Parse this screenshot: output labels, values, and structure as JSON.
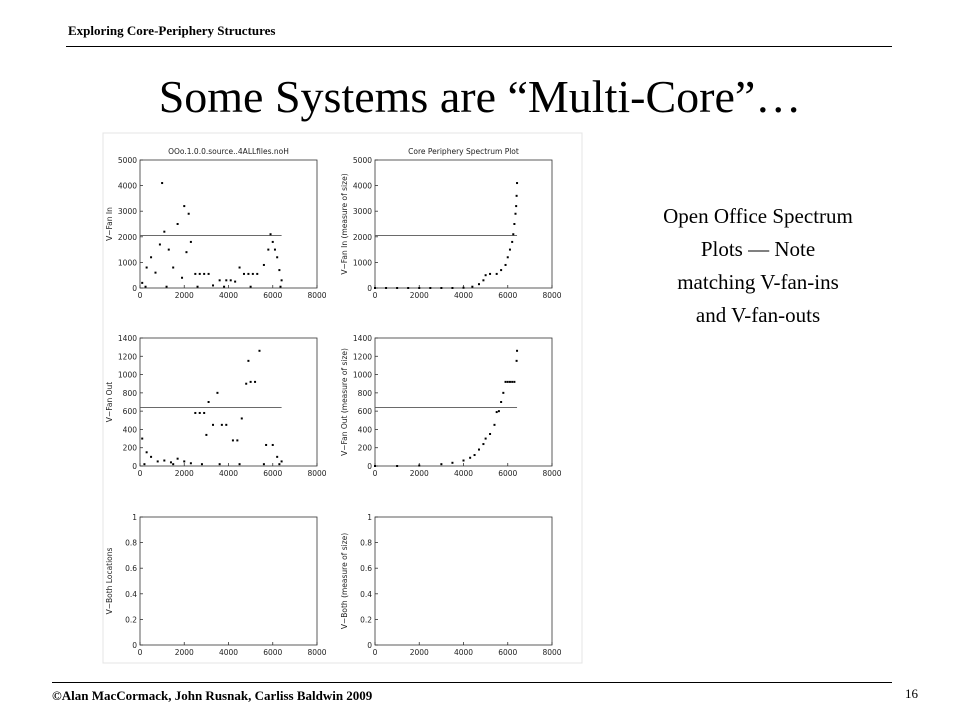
{
  "header": {
    "text": "Exploring Core-Periphery Structures"
  },
  "title": "Some Systems are “Multi-Core”…",
  "caption": "Open Office Spectrum Plots — Note matching V-fan-ins and V-fan-outs",
  "footer": {
    "copyright": "©Alan MacCormack, John Rusnak, Carliss Baldwin 2009",
    "page": "16"
  },
  "figure": {
    "plots": [
      {
        "title": "OOo.1.0.0.source..4ALLfiles.noH",
        "ylabel": "V−Fan In",
        "xlim": [
          0,
          8000
        ],
        "xticks": [
          0,
          2000,
          4000,
          6000,
          8000
        ],
        "ylim": [
          0,
          5000
        ],
        "yticks": [
          0,
          1000,
          2000,
          3000,
          4000,
          5000
        ],
        "threshold": 2050,
        "x": [
          100,
          300,
          500,
          700,
          900,
          1000,
          1100,
          1300,
          1500,
          1700,
          1900,
          2000,
          2100,
          2200,
          2300,
          2500,
          2700,
          2900,
          3100,
          3300,
          3600,
          3900,
          4100,
          4300,
          4500,
          4700,
          4900,
          5100,
          5300,
          5600,
          5800,
          5900,
          6000,
          6100,
          6200,
          6300,
          6400,
          250,
          1200,
          2600,
          3800,
          5000,
          6350
        ],
        "y": [
          200,
          800,
          1200,
          600,
          1700,
          4100,
          2200,
          1500,
          800,
          2500,
          400,
          3200,
          1400,
          2900,
          1800,
          550,
          550,
          550,
          550,
          100,
          300,
          300,
          300,
          250,
          800,
          550,
          550,
          550,
          550,
          900,
          1500,
          2100,
          1800,
          1500,
          1200,
          700,
          300,
          50,
          50,
          50,
          50,
          50,
          50
        ]
      },
      {
        "title": "Core Periphery Spectrum Plot",
        "ylabel": "V−Fan In (measure of size)",
        "xlim": [
          0,
          8000
        ],
        "xticks": [
          0,
          2000,
          4000,
          6000,
          8000
        ],
        "ylim": [
          0,
          5000
        ],
        "yticks": [
          0,
          1000,
          2000,
          3000,
          4000,
          5000
        ],
        "threshold": 2050,
        "x": [
          0,
          500,
          1000,
          1500,
          2000,
          2500,
          3000,
          3500,
          4000,
          4400,
          4700,
          4900,
          5000,
          5200,
          5500,
          5700,
          5900,
          6000,
          6100,
          6200,
          6250,
          6300,
          6350,
          6380,
          6400,
          6420
        ],
        "y": [
          0,
          0,
          0,
          0,
          0,
          0,
          0,
          0,
          10,
          50,
          150,
          300,
          500,
          550,
          550,
          700,
          900,
          1200,
          1500,
          1800,
          2100,
          2500,
          2900,
          3200,
          3600,
          4100
        ]
      },
      {
        "ylabel": "V−Fan Out",
        "xlim": [
          0,
          8000
        ],
        "xticks": [
          0,
          2000,
          4000,
          6000,
          8000
        ],
        "ylim": [
          0,
          1400
        ],
        "yticks": [
          0,
          200,
          400,
          600,
          800,
          1000,
          1200,
          1400
        ],
        "threshold": 640,
        "x": [
          100,
          300,
          500,
          800,
          1100,
          1400,
          1700,
          2000,
          2300,
          2500,
          2700,
          2900,
          3000,
          3100,
          3300,
          3500,
          3700,
          3900,
          4200,
          4400,
          4600,
          4800,
          5000,
          5200,
          5400,
          5700,
          6000,
          6200,
          6400,
          200,
          1500,
          2800,
          3600,
          4500,
          5600,
          6300,
          4900
        ],
        "y": [
          300,
          150,
          100,
          50,
          60,
          40,
          80,
          50,
          30,
          580,
          580,
          580,
          340,
          700,
          450,
          800,
          450,
          450,
          280,
          280,
          520,
          900,
          920,
          920,
          1260,
          230,
          230,
          100,
          50,
          20,
          20,
          20,
          20,
          20,
          20,
          20,
          1150
        ]
      },
      {
        "ylabel": "V−Fan Out (measure of size)",
        "xlim": [
          0,
          8000
        ],
        "xticks": [
          0,
          2000,
          4000,
          6000,
          8000
        ],
        "ylim": [
          0,
          1400
        ],
        "yticks": [
          0,
          200,
          400,
          600,
          800,
          1000,
          1200,
          1400
        ],
        "threshold": 640,
        "x": [
          0,
          1000,
          2000,
          3000,
          3500,
          4000,
          4300,
          4500,
          4700,
          4900,
          5000,
          5200,
          5400,
          5500,
          5600,
          5700,
          5800,
          5900,
          6000,
          6100,
          6200,
          6300,
          6400,
          6420
        ],
        "y": [
          0,
          0,
          5,
          20,
          35,
          60,
          90,
          120,
          180,
          240,
          300,
          350,
          450,
          590,
          600,
          700,
          800,
          920,
          920,
          920,
          920,
          920,
          1150,
          1260
        ]
      },
      {
        "ylabel": "V−Both Locations",
        "xlim": [
          0,
          8000
        ],
        "xticks": [
          0,
          2000,
          4000,
          6000,
          8000
        ],
        "ylim": [
          0,
          1
        ],
        "yticks": [
          0,
          0.2,
          0.4,
          0.6,
          0.8,
          1
        ],
        "x": [],
        "y": []
      },
      {
        "ylabel": "V−Both (measure of size)",
        "xlim": [
          0,
          8000
        ],
        "xticks": [
          0,
          2000,
          4000,
          6000,
          8000
        ],
        "ylim": [
          0,
          1
        ],
        "yticks": [
          0,
          0.2,
          0.4,
          0.6,
          0.8,
          1
        ],
        "x": [],
        "y": []
      }
    ]
  }
}
